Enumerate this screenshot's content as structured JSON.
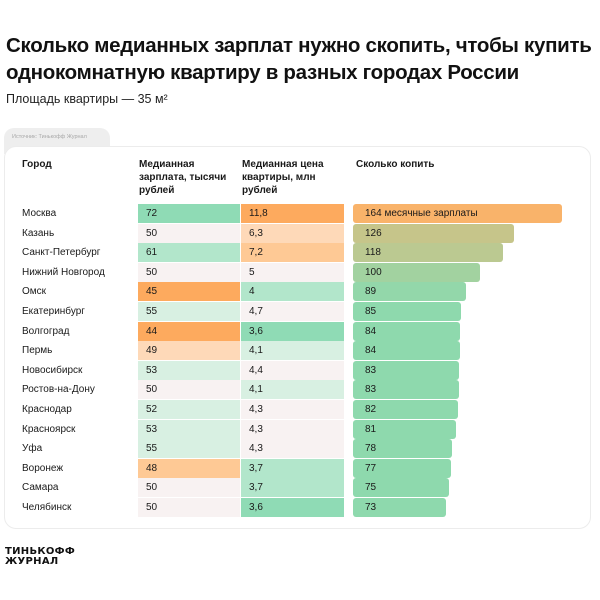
{
  "header": {
    "title": "Сколько медианных зарплат нужно скопить, чтобы купить однокомнатную квартиру в разных городах России",
    "subtitle": "Площадь квартиры — 35 м²",
    "source": "Источник: Тинькофф Журнал"
  },
  "footer": {
    "logo_line1": "ТИНЬКОФФ",
    "logo_line2": "ЖУРНАЛ"
  },
  "colors": {
    "green_strong": "#8fdbb5",
    "green_mid": "#b2e6cb",
    "green_light": "#d8f0e2",
    "neutral": "#f8f2f2",
    "orange_strong": "#fdaa5e",
    "orange_mid": "#fec995",
    "orange_light": "#fed9b8",
    "bar_top": "#f9b36a",
    "bar_bottom": "#8ed9ad"
  },
  "chart_data": {
    "type": "table",
    "title": "Сколько медианных зарплат нужно скопить, чтобы купить однокомнатную квартиру в разных городах России",
    "subtitle": "Площадь квартиры — 35 м²",
    "columns": [
      "Город",
      "Медианная зарплата, тысячи рублей",
      "Медианная цена квартиры, млн рублей",
      "Сколько копить"
    ],
    "bar_unit_label": "месячные зарплаты",
    "rows": [
      {
        "city": "Москва",
        "salary": 72,
        "price": "11,8",
        "months": 164,
        "salary_tone": "green_strong",
        "price_tone": "orange_strong"
      },
      {
        "city": "Казань",
        "salary": 50,
        "price": "6,3",
        "months": 126,
        "salary_tone": "neutral",
        "price_tone": "orange_light"
      },
      {
        "city": "Санкт-Петербург",
        "salary": 61,
        "price": "7,2",
        "months": 118,
        "salary_tone": "green_mid",
        "price_tone": "orange_mid"
      },
      {
        "city": "Нижний Новгород",
        "salary": 50,
        "price": "5",
        "months": 100,
        "salary_tone": "neutral",
        "price_tone": "neutral"
      },
      {
        "city": "Омск",
        "salary": 45,
        "price": "4",
        "months": 89,
        "salary_tone": "orange_strong",
        "price_tone": "green_mid"
      },
      {
        "city": "Екатеринбург",
        "salary": 55,
        "price": "4,7",
        "months": 85,
        "salary_tone": "green_light",
        "price_tone": "neutral"
      },
      {
        "city": "Волгоград",
        "salary": 44,
        "price": "3,6",
        "months": 84,
        "salary_tone": "orange_strong",
        "price_tone": "green_strong"
      },
      {
        "city": "Пермь",
        "salary": 49,
        "price": "4,1",
        "months": 84,
        "salary_tone": "orange_light",
        "price_tone": "green_light"
      },
      {
        "city": "Новосибирск",
        "salary": 53,
        "price": "4,4",
        "months": 83,
        "salary_tone": "green_light",
        "price_tone": "neutral"
      },
      {
        "city": "Ростов-на-Дону",
        "salary": 50,
        "price": "4,1",
        "months": 83,
        "salary_tone": "neutral",
        "price_tone": "green_light"
      },
      {
        "city": "Краснодар",
        "salary": 52,
        "price": "4,3",
        "months": 82,
        "salary_tone": "green_light",
        "price_tone": "neutral"
      },
      {
        "city": "Красноярск",
        "salary": 53,
        "price": "4,3",
        "months": 81,
        "salary_tone": "green_light",
        "price_tone": "neutral"
      },
      {
        "city": "Уфа",
        "salary": 55,
        "price": "4,3",
        "months": 78,
        "salary_tone": "green_light",
        "price_tone": "neutral"
      },
      {
        "city": "Воронеж",
        "salary": 48,
        "price": "3,7",
        "months": 77,
        "salary_tone": "orange_mid",
        "price_tone": "green_mid"
      },
      {
        "city": "Самара",
        "salary": 50,
        "price": "3,7",
        "months": 75,
        "salary_tone": "neutral",
        "price_tone": "green_mid"
      },
      {
        "city": "Челябинск",
        "salary": 50,
        "price": "3,6",
        "months": 73,
        "salary_tone": "neutral",
        "price_tone": "green_strong"
      }
    ],
    "bar_max": 164
  }
}
